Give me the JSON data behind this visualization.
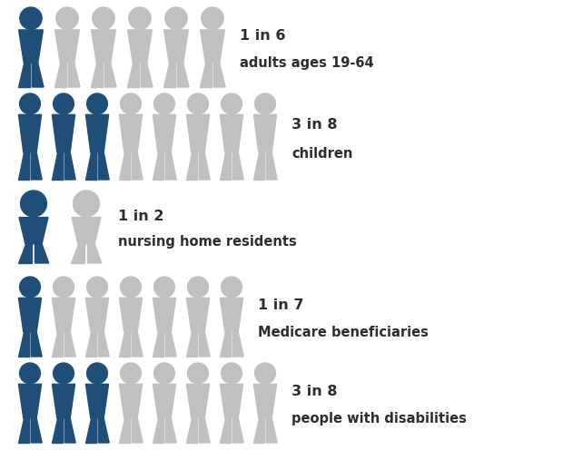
{
  "rows": [
    {
      "total": 6,
      "highlighted": 1,
      "label_line1": "1 in 6",
      "label_line2": "adults ages 19-64"
    },
    {
      "total": 8,
      "highlighted": 3,
      "label_line1": "3 in 8",
      "label_line2": "children"
    },
    {
      "total": 2,
      "highlighted": 1,
      "label_line1": "1 in 2",
      "label_line2": "nursing home residents"
    },
    {
      "total": 7,
      "highlighted": 1,
      "label_line1": "1 in 7",
      "label_line2": "Medicare beneficiaries"
    },
    {
      "total": 8,
      "highlighted": 3,
      "label_line1": "3 in 8",
      "label_line2": "people with disabilities"
    }
  ],
  "blue_color": "#1F4E79",
  "gray_color": "#C0C0C0",
  "background_color": "#FFFFFF",
  "label_color": "#2D2D2D",
  "figure_width": 6.2,
  "figure_height": 4.96,
  "dpi": 100
}
